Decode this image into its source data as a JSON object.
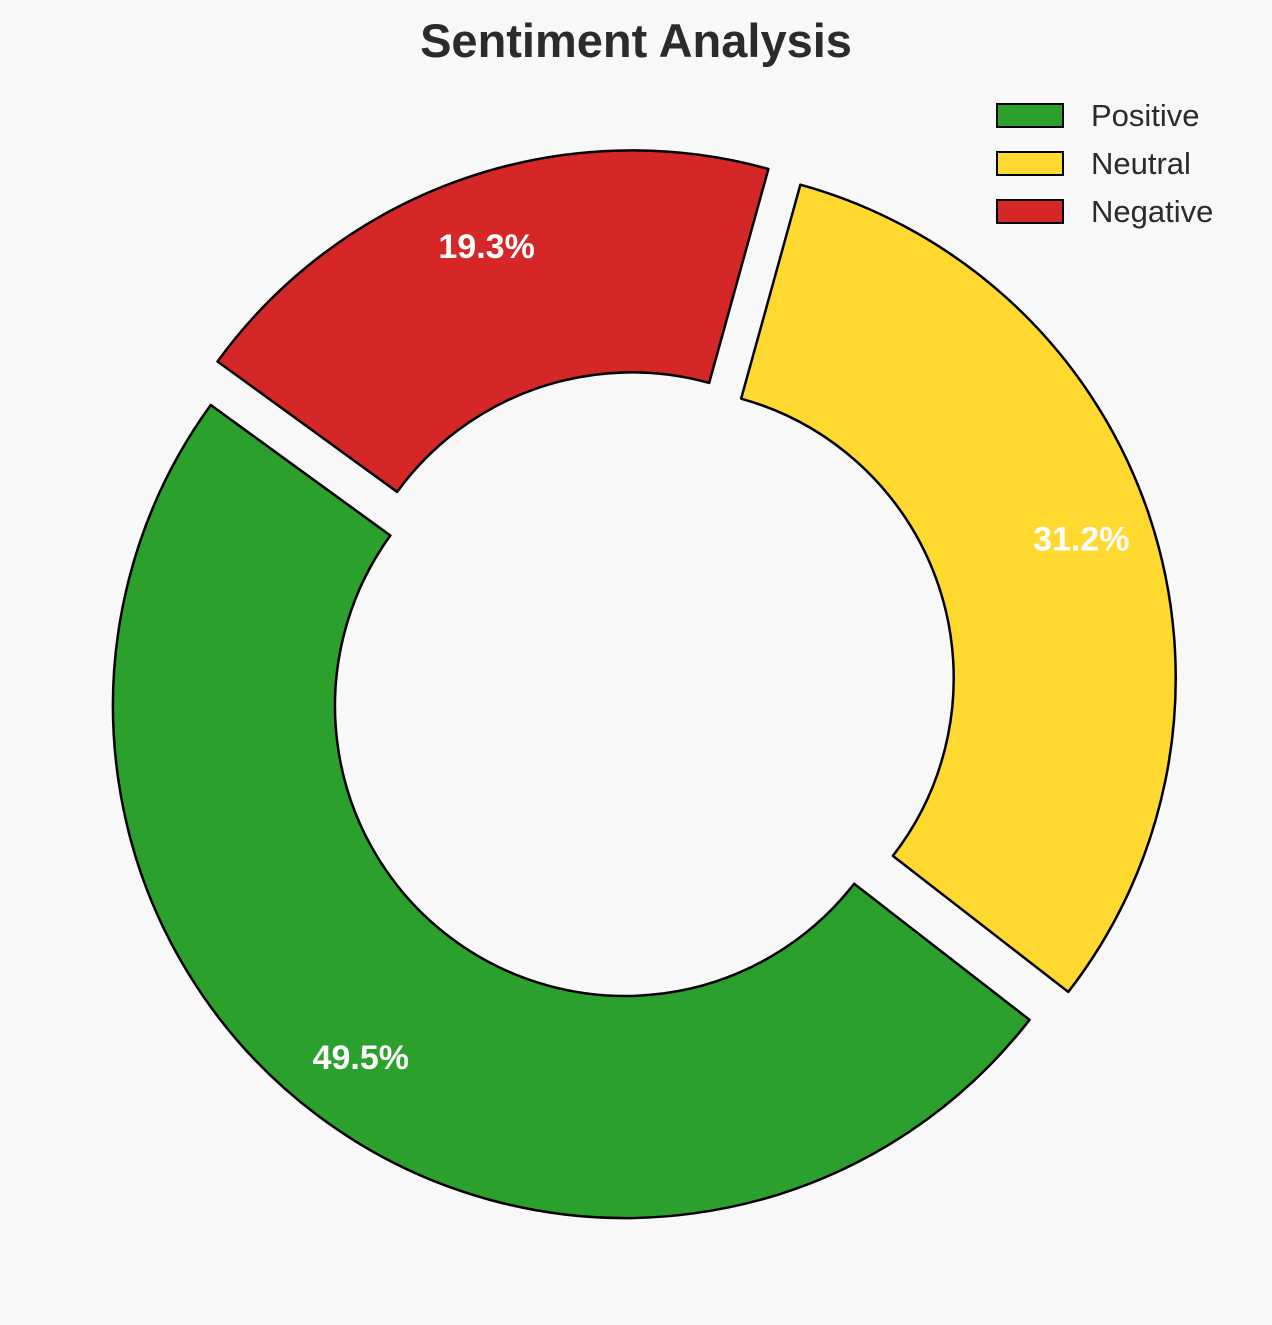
{
  "chart_data": {
    "type": "pie",
    "variant": "donut",
    "title": "Sentiment Analysis",
    "categories": [
      "Positive",
      "Neutral",
      "Negative"
    ],
    "values": [
      49.5,
      31.2,
      19.3
    ],
    "labels": [
      "49.5%",
      "31.2%",
      "19.3%"
    ],
    "colors": [
      "#2ca02c",
      "#ffd92f",
      "#d62728"
    ],
    "edge_color": "#000000",
    "exploded": [
      true,
      true,
      true
    ],
    "legend": {
      "placement": "top-right",
      "entries": [
        "Positive",
        "Neutral",
        "Negative"
      ]
    }
  }
}
